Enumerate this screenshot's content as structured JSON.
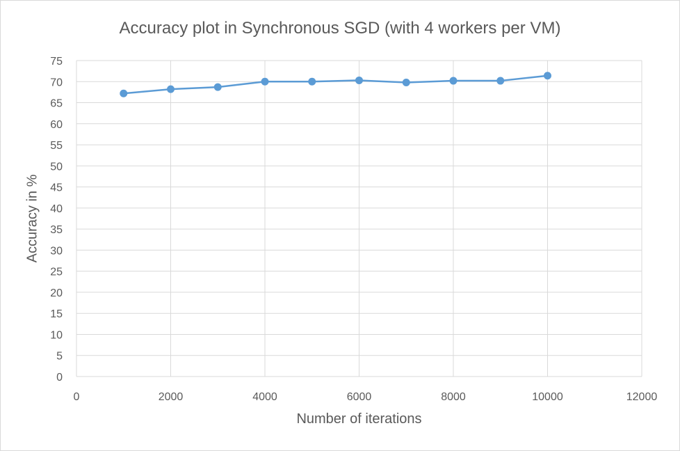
{
  "chart_data": {
    "type": "line",
    "title": "Accuracy plot in Synchronous SGD (with 4 workers per VM)",
    "xlabel": "Number of iterations",
    "ylabel": "Accuracy in %",
    "xlim": [
      0,
      12000
    ],
    "ylim": [
      0,
      75
    ],
    "x_ticks": [
      0,
      2000,
      4000,
      6000,
      8000,
      10000,
      12000
    ],
    "y_ticks": [
      0,
      5,
      10,
      15,
      20,
      25,
      30,
      35,
      40,
      45,
      50,
      55,
      60,
      65,
      70,
      75
    ],
    "grid": true,
    "series": [
      {
        "name": "Accuracy",
        "color": "#5b9bd5",
        "x": [
          1000,
          2000,
          3000,
          4000,
          5000,
          6000,
          7000,
          8000,
          9000,
          10000
        ],
        "values": [
          67.2,
          68.2,
          68.7,
          70.0,
          70.0,
          70.3,
          69.8,
          70.2,
          70.2,
          71.4
        ]
      }
    ]
  }
}
